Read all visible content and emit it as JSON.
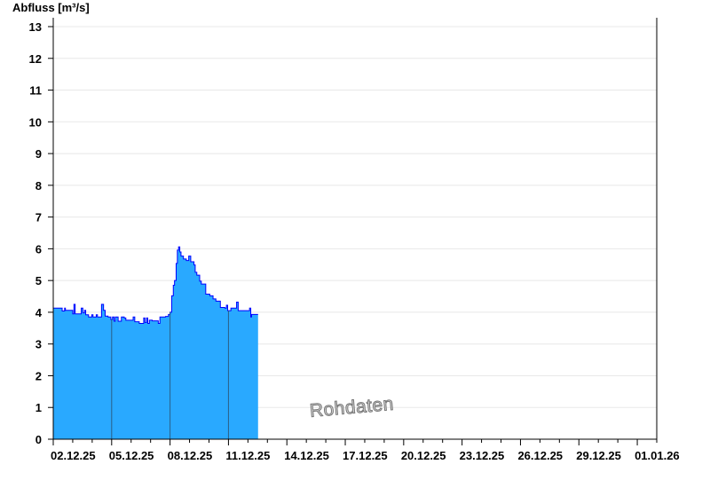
{
  "chart_data": {
    "type": "area",
    "title": "",
    "ylabel": "Abfluss [m³/s]",
    "xlabel": "",
    "ylim": [
      0,
      13
    ],
    "xlim": [
      "02.12.25 00:00",
      "02.01.26 00:00"
    ],
    "yticks": [
      0,
      1,
      2,
      3,
      4,
      5,
      6,
      7,
      8,
      9,
      10,
      11,
      12,
      13
    ],
    "xtick_labels": [
      "02.12.25",
      "05.12.25",
      "08.12.25",
      "11.12.25",
      "14.12.25",
      "17.12.25",
      "20.12.25",
      "23.12.25",
      "26.12.25",
      "29.12.25",
      "01.01.26"
    ],
    "grid": true,
    "watermark": "Rohdaten",
    "colors": {
      "fill": "#29a9ff",
      "line": "#0000ff",
      "grid": "#e8e8e8",
      "divider": "#2a5f86"
    },
    "series": [
      {
        "points": [
          [
            "02.12.25 00:00",
            4.13
          ],
          [
            "02.12.25 10:00",
            4.13
          ],
          [
            "02.12.25 11:00",
            4.04
          ],
          [
            "02.12.25 14:00",
            4.13
          ],
          [
            "02.12.25 15:00",
            4.06
          ],
          [
            "02.12.25 23:00",
            4.06
          ],
          [
            "03.12.25 00:00",
            3.95
          ],
          [
            "03.12.25 01:30",
            4.25
          ],
          [
            "03.12.25 03:00",
            3.95
          ],
          [
            "03.12.25 09:00",
            3.95
          ],
          [
            "03.12.25 10:30",
            4.13
          ],
          [
            "03.12.25 12:30",
            3.98
          ],
          [
            "03.12.25 14:30",
            4.06
          ],
          [
            "03.12.25 16:00",
            3.92
          ],
          [
            "03.12.25 19:30",
            3.85
          ],
          [
            "03.12.25 23:30",
            3.92
          ],
          [
            "04.12.25 01:00",
            3.85
          ],
          [
            "04.12.25 05:00",
            3.92
          ],
          [
            "04.12.25 06:30",
            3.85
          ],
          [
            "04.12.25 10:30",
            3.85
          ],
          [
            "04.12.25 11:30",
            4.25
          ],
          [
            "04.12.25 14:00",
            4.06
          ],
          [
            "04.12.25 16:00",
            3.88
          ],
          [
            "04.12.25 19:30",
            3.85
          ],
          [
            "04.12.25 23:00",
            3.77
          ],
          [
            "05.12.25 01:00",
            3.85
          ],
          [
            "05.12.25 03:00",
            3.72
          ],
          [
            "05.12.25 04:30",
            3.85
          ],
          [
            "05.12.25 08:00",
            3.72
          ],
          [
            "05.12.25 12:00",
            3.85
          ],
          [
            "05.12.25 15:30",
            3.82
          ],
          [
            "05.12.25 17:30",
            3.75
          ],
          [
            "06.12.25 00:30",
            3.75
          ],
          [
            "06.12.25 02:30",
            3.85
          ],
          [
            "06.12.25 04:30",
            3.7
          ],
          [
            "06.12.25 10:00",
            3.65
          ],
          [
            "06.12.25 15:30",
            3.82
          ],
          [
            "06.12.25 17:00",
            3.68
          ],
          [
            "06.12.25 19:00",
            3.82
          ],
          [
            "06.12.25 20:30",
            3.65
          ],
          [
            "06.12.25 22:30",
            3.75
          ],
          [
            "07.12.25 02:00",
            3.73
          ],
          [
            "07.12.25 07:30",
            3.73
          ],
          [
            "07.12.25 09:30",
            3.65
          ],
          [
            "07.12.25 11:30",
            3.85
          ],
          [
            "07.12.25 18:30",
            3.87
          ],
          [
            "07.12.25 22:00",
            3.93
          ],
          [
            "08.12.25 00:00",
            4.0
          ],
          [
            "08.12.25 02:00",
            4.52
          ],
          [
            "08.12.25 04:00",
            4.85
          ],
          [
            "08.12.25 05:30",
            5.0
          ],
          [
            "08.12.25 07:30",
            5.54
          ],
          [
            "08.12.25 09:00",
            5.96
          ],
          [
            "08.12.25 10:30",
            6.06
          ],
          [
            "08.12.25 12:00",
            5.9
          ],
          [
            "08.12.25 13:30",
            5.77
          ],
          [
            "08.12.25 16:30",
            5.68
          ],
          [
            "08.12.25 20:00",
            5.63
          ],
          [
            "08.12.25 23:00",
            5.77
          ],
          [
            "09.12.25 01:30",
            5.59
          ],
          [
            "09.12.25 05:30",
            5.49
          ],
          [
            "09.12.25 07:00",
            5.26
          ],
          [
            "09.12.25 09:00",
            5.17
          ],
          [
            "09.12.25 12:30",
            4.98
          ],
          [
            "09.12.25 14:30",
            4.89
          ],
          [
            "09.12.25 18:00",
            4.89
          ],
          [
            "09.12.25 20:00",
            4.57
          ],
          [
            "10.12.25 01:00",
            4.52
          ],
          [
            "10.12.25 05:00",
            4.42
          ],
          [
            "10.12.25 08:30",
            4.35
          ],
          [
            "10.12.25 14:00",
            4.15
          ],
          [
            "10.12.25 19:30",
            4.13
          ],
          [
            "10.12.25 21:30",
            4.22
          ],
          [
            "10.12.25 23:00",
            4.05
          ],
          [
            "11.12.25 03:00",
            4.13
          ],
          [
            "11.12.25 10:00",
            4.32
          ],
          [
            "11.12.25 12:00",
            4.05
          ],
          [
            "12.12.25 00:30",
            4.05
          ],
          [
            "12.12.25 02:00",
            4.13
          ],
          [
            "12.12.25 03:30",
            3.85
          ],
          [
            "12.12.25 04:30",
            3.93
          ],
          [
            "12.12.25 12:30",
            3.93
          ]
        ]
      }
    ]
  }
}
